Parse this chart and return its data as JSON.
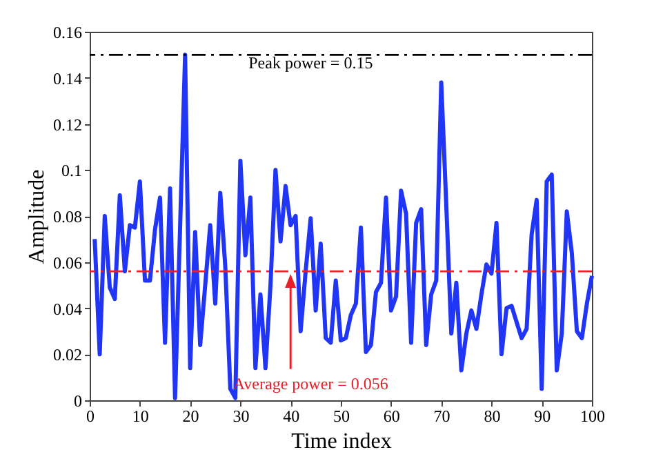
{
  "chart_data": {
    "type": "line",
    "xlabel": "Time index",
    "ylabel": "Amplitude",
    "x": [
      1,
      2,
      3,
      4,
      5,
      6,
      7,
      8,
      9,
      10,
      11,
      12,
      13,
      14,
      15,
      16,
      17,
      18,
      19,
      20,
      21,
      22,
      23,
      24,
      25,
      26,
      27,
      28,
      29,
      30,
      31,
      32,
      33,
      34,
      35,
      36,
      37,
      38,
      39,
      40,
      41,
      42,
      43,
      44,
      45,
      46,
      47,
      48,
      49,
      50,
      51,
      52,
      53,
      54,
      55,
      56,
      57,
      58,
      59,
      60,
      61,
      62,
      63,
      64,
      65,
      66,
      67,
      68,
      69,
      70,
      71,
      72,
      73,
      74,
      75,
      76,
      77,
      78,
      79,
      80,
      81,
      82,
      83,
      84,
      85,
      86,
      87,
      88,
      89,
      90,
      91,
      92,
      93,
      94,
      95,
      96,
      97,
      98,
      99,
      100
    ],
    "series": [
      {
        "color": "#2136f5",
        "values": [
          0.07,
          0.02,
          0.08,
          0.049,
          0.044,
          0.089,
          0.056,
          0.076,
          0.075,
          0.095,
          0.052,
          0.052,
          0.074,
          0.088,
          0.025,
          0.092,
          0.001,
          0.075,
          0.15,
          0.014,
          0.073,
          0.024,
          0.05,
          0.076,
          0.042,
          0.09,
          0.058,
          0.005,
          0.001,
          0.104,
          0.063,
          0.088,
          0.014,
          0.046,
          0.014,
          0.05,
          0.1,
          0.069,
          0.093,
          0.076,
          0.08,
          0.03,
          0.056,
          0.079,
          0.039,
          0.068,
          0.027,
          0.025,
          0.052,
          0.026,
          0.027,
          0.037,
          0.042,
          0.075,
          0.021,
          0.024,
          0.047,
          0.051,
          0.088,
          0.039,
          0.045,
          0.091,
          0.081,
          0.025,
          0.077,
          0.083,
          0.024,
          0.046,
          0.052,
          0.138,
          0.085,
          0.029,
          0.051,
          0.013,
          0.029,
          0.039,
          0.031,
          0.046,
          0.059,
          0.055,
          0.077,
          0.02,
          0.04,
          0.041,
          0.034,
          0.027,
          0.031,
          0.072,
          0.087,
          0.005,
          0.095,
          0.098,
          0.013,
          0.029,
          0.082,
          0.064,
          0.03,
          0.027,
          0.042,
          0.054
        ]
      }
    ],
    "xlim": [
      0,
      100
    ],
    "xticks": [
      0,
      10,
      20,
      30,
      40,
      50,
      60,
      70,
      80,
      90,
      100
    ],
    "ylim": [
      0,
      0.16
    ],
    "yticks": [
      0,
      0.02,
      0.04,
      0.06,
      0.08,
      0.1,
      0.12,
      0.14,
      0.16
    ],
    "ref_lines": [
      {
        "axis": "y",
        "value": 0.15,
        "label": "Peak power = 0.15",
        "color": "#000000",
        "line_style": "dashdot"
      },
      {
        "axis": "y",
        "value": 0.056,
        "label": "Average power = 0.056",
        "color": "#e8202a",
        "line_style": "dashdot"
      }
    ],
    "grid": false,
    "line_style": "solid",
    "marker": "none"
  }
}
